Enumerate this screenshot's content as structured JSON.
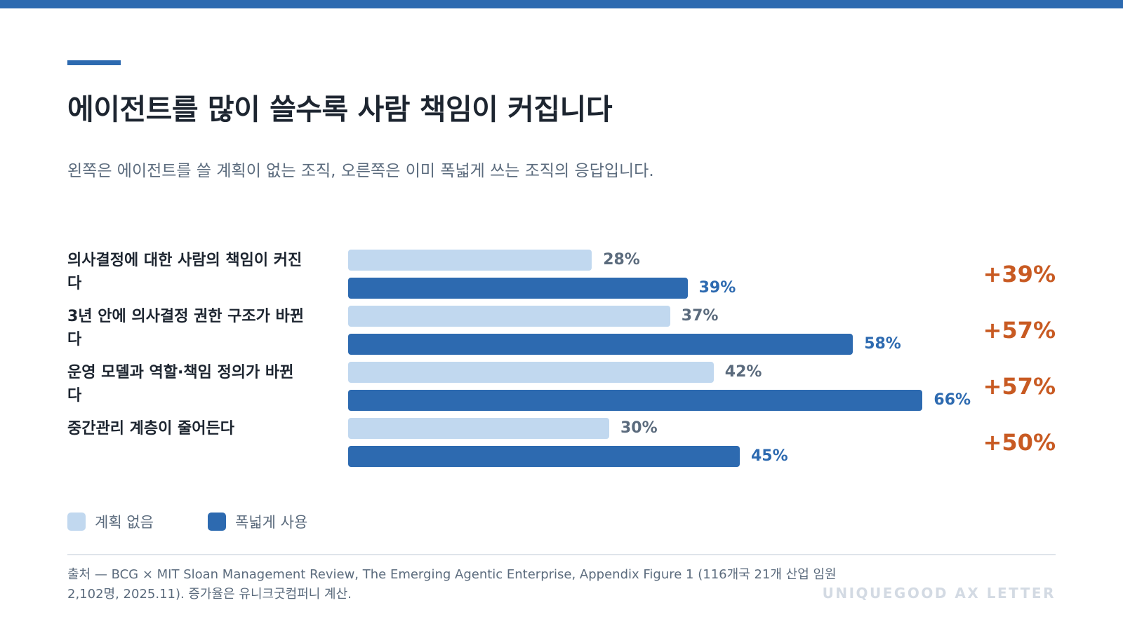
{
  "title": "에이전트를 많이 쓸수록 사람 책임이 커집니다",
  "subtitle": "왼쪽은 에이전트를 쓸 계획이 없는 조직, 오른쪽은 이미 폭넓게 쓰는 조직의 응답입니다.",
  "legend": {
    "no_plan": "계획 없음",
    "broad_use": "폭넓게 사용"
  },
  "source": "출처 — BCG × MIT Sloan Management Review, The Emerging Agentic Enterprise, Appendix Figure 1 (116개국 21개 산업 임원 2,102명, 2025.11). 증가율은 유니크굿컴퍼니 계산.",
  "brand": "UNIQUEGOOD AX LETTER",
  "colors": {
    "no_plan": "#c1d8ef",
    "broad_use": "#2d6ab0",
    "increase": "#c85a22",
    "title": "#1d2530"
  },
  "chart_data": {
    "type": "bar",
    "orientation": "horizontal",
    "categories": [
      "의사결정에 대한 사람의 책임이 커진다",
      "3년 안에 의사결정 권한 구조가 바뀐다",
      "운영 모델과 역할·책임 정의가 바뀐다",
      "중간관리 계층이 줄어든다"
    ],
    "series": [
      {
        "name": "계획 없음",
        "values": [
          28,
          37,
          42,
          30
        ],
        "labels": [
          "28%",
          "37%",
          "42%",
          "30%"
        ]
      },
      {
        "name": "폭넓게 사용",
        "values": [
          39,
          58,
          66,
          45
        ],
        "labels": [
          "39%",
          "58%",
          "66%",
          "45%"
        ]
      }
    ],
    "increase_labels": [
      "+39%",
      "+57%",
      "+57%",
      "+50%"
    ],
    "unit": "%",
    "xlim": [
      0,
      100
    ],
    "grid": false,
    "legend_position": "bottom-left"
  }
}
